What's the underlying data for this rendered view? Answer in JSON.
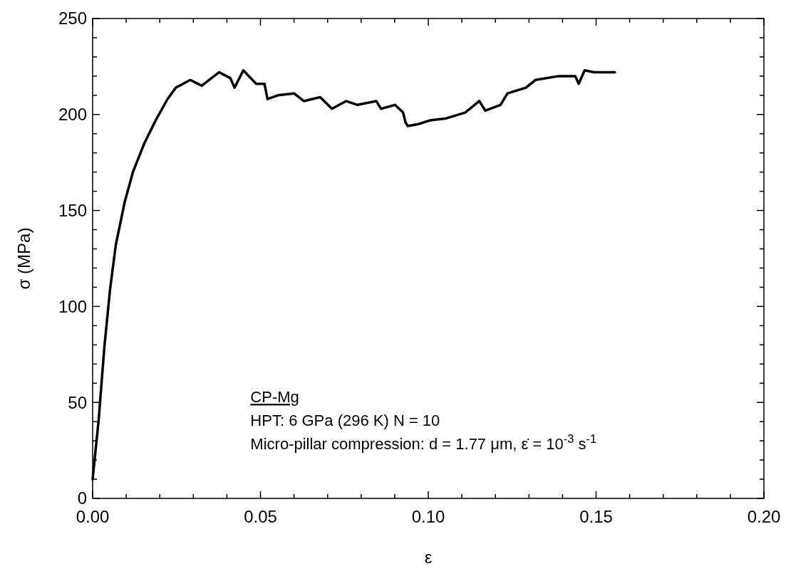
{
  "chart_data": {
    "type": "line",
    "xlabel": "ε",
    "ylabel": "σ (MPa)",
    "xlim": [
      0,
      0.2
    ],
    "ylim": [
      0,
      250
    ],
    "xticks": [
      {
        "value": 0,
        "label": "0.00"
      },
      {
        "value": 0.01,
        "label": null
      },
      {
        "value": 0.02,
        "label": null
      },
      {
        "value": 0.03,
        "label": null
      },
      {
        "value": 0.04,
        "label": null
      },
      {
        "value": 0.05,
        "label": "0.05"
      },
      {
        "value": 0.06,
        "label": null
      },
      {
        "value": 0.07,
        "label": null
      },
      {
        "value": 0.08,
        "label": null
      },
      {
        "value": 0.09,
        "label": null
      },
      {
        "value": 0.1,
        "label": "0.10"
      },
      {
        "value": 0.11,
        "label": null
      },
      {
        "value": 0.12,
        "label": null
      },
      {
        "value": 0.13,
        "label": null
      },
      {
        "value": 0.14,
        "label": null
      },
      {
        "value": 0.15,
        "label": "0.15"
      },
      {
        "value": 0.16,
        "label": null
      },
      {
        "value": 0.17,
        "label": null
      },
      {
        "value": 0.18,
        "label": null
      },
      {
        "value": 0.19,
        "label": null
      },
      {
        "value": 0.2,
        "label": "0.20"
      }
    ],
    "yticks": [
      0,
      {
        "value": 10,
        "label": null
      },
      {
        "value": 20,
        "label": null
      },
      {
        "value": 30,
        "label": null
      },
      {
        "value": 40,
        "label": null
      },
      50,
      {
        "value": 60,
        "label": null
      },
      {
        "value": 70,
        "label": null
      },
      {
        "value": 80,
        "label": null
      },
      {
        "value": 90,
        "label": null
      },
      100,
      {
        "value": 110,
        "label": null
      },
      {
        "value": 120,
        "label": null
      },
      {
        "value": 130,
        "label": null
      },
      {
        "value": 140,
        "label": null
      },
      150,
      {
        "value": 160,
        "label": null
      },
      {
        "value": 170,
        "label": null
      },
      {
        "value": 180,
        "label": null
      },
      {
        "value": 190,
        "label": null
      },
      200,
      {
        "value": 210,
        "label": null
      },
      {
        "value": 220,
        "label": null
      },
      {
        "value": 230,
        "label": null
      },
      {
        "value": 240,
        "label": null
      },
      250
    ],
    "grid": false,
    "marker": "none",
    "line_style": "solid",
    "annotations": [
      "CP-Mg",
      "HPT: 6 GPa (296 K) N = 10",
      "Micro-pillar compression: d = 1.77 μm, ε̇ = 10$^{-3}$ s$^{-1}$"
    ],
    "series": [
      {
        "color": "#000000",
        "x": [
          0,
          0.0018,
          0.0035,
          0.0052,
          0.0069,
          0.0095,
          0.012,
          0.0154,
          0.0188,
          0.0223,
          0.0248,
          0.0291,
          0.0325,
          0.0377,
          0.041,
          0.0423,
          0.0449,
          0.0487,
          0.0512,
          0.0521,
          0.0552,
          0.06,
          0.0629,
          0.0678,
          0.0713,
          0.0755,
          0.0789,
          0.0845,
          0.0859,
          0.0901,
          0.0925,
          0.0932,
          0.0939,
          0.0971,
          0.1006,
          0.1054,
          0.111,
          0.1152,
          0.117,
          0.1215,
          0.1236,
          0.1291,
          0.1319,
          0.1389,
          0.1438,
          0.1448,
          0.1466,
          0.1494,
          0.1556
        ],
        "values": [
          10,
          41,
          79,
          109,
          132,
          154,
          170,
          185,
          197,
          208,
          214,
          218,
          215,
          222,
          219,
          214,
          223,
          216,
          216,
          208,
          210,
          211,
          207,
          209,
          203,
          207,
          205,
          207,
          203,
          205,
          201,
          196,
          194,
          195,
          197,
          198,
          201,
          207,
          202,
          205,
          211,
          214,
          218,
          220,
          220,
          216,
          223,
          222,
          222
        ]
      }
    ]
  }
}
